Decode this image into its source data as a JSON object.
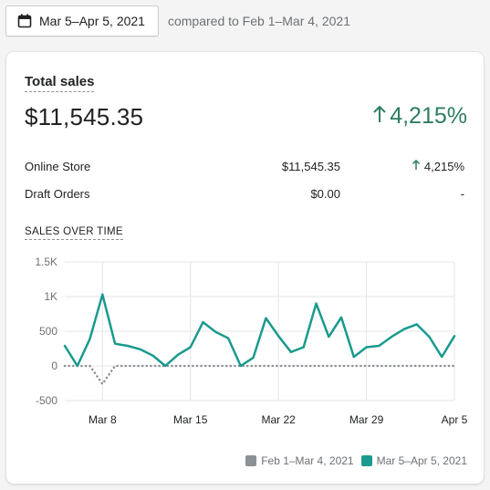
{
  "header": {
    "date_range": "Mar 5–Apr 5, 2021",
    "compared_text": "compared to Feb 1–Mar 4, 2021"
  },
  "card": {
    "title": "Total sales",
    "total_value": "$11,545.35",
    "total_change": "4,215%",
    "breakdown": [
      {
        "name": "Online Store",
        "amount": "$11,545.35",
        "change": "4,215%",
        "trend": "up"
      },
      {
        "name": "Draft Orders",
        "amount": "$0.00",
        "change": "-",
        "trend": "none"
      }
    ],
    "chart_label": "SALES OVER TIME"
  },
  "chart_data": {
    "type": "line",
    "title": "SALES OVER TIME",
    "ylim": [
      -500,
      1500
    ],
    "yticks": [
      -500,
      0,
      500,
      1000,
      1500
    ],
    "ytick_labels": [
      "-500",
      "0",
      "500",
      "1K",
      "1.5K"
    ],
    "xticks": [
      {
        "label": "Mar 8",
        "index": 3
      },
      {
        "label": "Mar 15",
        "index": 10
      },
      {
        "label": "Mar 22",
        "index": 17
      },
      {
        "label": "Mar 29",
        "index": 24
      },
      {
        "label": "Apr 5",
        "index": 31
      }
    ],
    "grid": true,
    "legend": "bottom-right",
    "series": [
      {
        "name": "Feb 1–Mar 4, 2021",
        "color": "#8c9196",
        "style": "dotted",
        "values": [
          0,
          0,
          0,
          -260,
          0,
          0,
          0,
          0,
          0,
          0,
          0,
          0,
          0,
          0,
          0,
          0,
          0,
          0,
          0,
          0,
          0,
          0,
          0,
          0,
          0,
          0,
          0,
          0,
          0,
          0,
          0,
          0
        ]
      },
      {
        "name": "Mar 5–Apr 5, 2021",
        "color": "#1a9a8e",
        "style": "solid",
        "values": [
          290,
          0,
          390,
          1030,
          320,
          290,
          240,
          150,
          0,
          160,
          270,
          630,
          490,
          400,
          0,
          120,
          690,
          430,
          200,
          270,
          900,
          420,
          700,
          130,
          270,
          290,
          420,
          530,
          600,
          420,
          130,
          430
        ]
      }
    ]
  },
  "colors": {
    "positive": "#2e7d5f",
    "current_series": "#1a9a8e",
    "previous_series": "#8c9196"
  }
}
